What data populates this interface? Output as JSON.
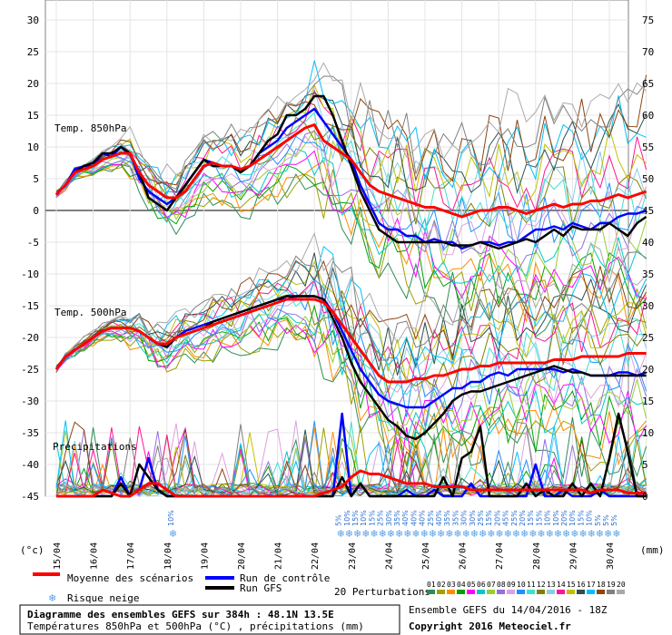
{
  "chart_data": {
    "type": "line",
    "y_left_ticks": [
      "30",
      "25",
      "20",
      "15",
      "10",
      "5",
      "0",
      "-5",
      "-10",
      "-15",
      "-20",
      "-25",
      "-30",
      "-35",
      "-40",
      "-45"
    ],
    "y_right_ticks": [
      "75",
      "70",
      "65",
      "60",
      "55",
      "50",
      "45",
      "40",
      "35",
      "30",
      "25",
      "20",
      "15",
      "10",
      "5",
      "0"
    ],
    "ylim_left": [
      -45,
      30
    ],
    "ylim_right": [
      0,
      75
    ],
    "unit_left": "(°c)",
    "unit_right": "(mm)",
    "x_dates": [
      "15/04",
      "16/04",
      "17/04",
      "18/04",
      "19/04",
      "20/04",
      "21/04",
      "22/04",
      "23/04",
      "24/04",
      "25/04",
      "26/04",
      "27/04",
      "28/04",
      "29/04",
      "30/04"
    ],
    "panel_labels": [
      "Temp. 850hPa",
      "Temp. 500hPa",
      "Précipitations"
    ],
    "x_days": [
      0,
      0.25,
      0.5,
      0.75,
      1,
      1.25,
      1.5,
      1.75,
      2,
      2.25,
      2.5,
      2.75,
      3,
      3.25,
      3.5,
      3.75,
      4,
      4.25,
      4.5,
      4.75,
      5,
      5.25,
      5.5,
      5.75,
      6,
      6.25,
      6.5,
      6.75,
      7,
      7.25,
      7.5,
      7.75,
      8,
      8.25,
      8.5,
      8.75,
      9,
      9.25,
      9.5,
      9.75,
      10,
      10.25,
      10.5,
      10.75,
      11,
      11.25,
      11.5,
      11.75,
      12,
      12.25,
      12.5,
      12.75,
      13,
      13.25,
      13.5,
      13.75,
      14,
      14.25,
      14.5,
      14.75,
      15,
      15.25,
      15.5,
      15.75,
      16
    ],
    "series": [
      {
        "name": "Moyenne des scénarios",
        "color": "#ff0000",
        "panel": "850",
        "values": [
          2.5,
          4,
          6,
          6.5,
          7,
          8,
          8.5,
          9,
          9,
          6,
          4,
          3,
          2,
          2,
          3,
          5,
          7,
          7.5,
          7,
          7,
          6.5,
          7,
          8,
          9,
          10,
          11,
          12,
          13,
          13.5,
          11,
          10,
          9,
          8,
          6,
          4,
          3,
          2.5,
          2,
          1.5,
          1,
          0.5,
          0.5,
          0,
          -0.5,
          -1,
          -0.5,
          0,
          0,
          0.5,
          0.5,
          0,
          -0.5,
          0,
          0.5,
          1,
          0.5,
          1,
          1,
          1.5,
          1.5,
          2,
          2.5,
          2,
          2.5,
          3
        ]
      },
      {
        "name": "Run de contrôle",
        "color": "#0000ff",
        "panel": "850",
        "values": [
          2.5,
          4,
          6.5,
          7,
          7,
          9,
          8.5,
          10,
          9,
          5,
          3,
          2,
          1,
          2,
          4,
          6,
          8,
          7.5,
          7,
          7,
          6.5,
          7,
          9,
          10,
          11,
          13,
          14,
          15,
          16,
          14,
          12,
          10,
          8,
          4,
          1,
          -2,
          -3,
          -3,
          -4,
          -4,
          -5,
          -4.5,
          -5,
          -5,
          -6,
          -5.5,
          -5,
          -5,
          -5.5,
          -5,
          -5,
          -4,
          -3,
          -3,
          -2.5,
          -3,
          -2,
          -2.5,
          -3,
          -2,
          -2,
          -1,
          -0.5,
          -0.5,
          0
        ]
      },
      {
        "name": "Run GFS",
        "color": "#000000",
        "panel": "850",
        "values": [
          2.5,
          4,
          6,
          7,
          7.5,
          9,
          9,
          10,
          9,
          6,
          2,
          1,
          0,
          2,
          4,
          6,
          8,
          7,
          7,
          7,
          6,
          7,
          9,
          11,
          12,
          15,
          15,
          16,
          18,
          18,
          15,
          11,
          7,
          3,
          0,
          -3,
          -4,
          -5,
          -5,
          -5,
          -5,
          -5,
          -5,
          -5.5,
          -5.5,
          -5.5,
          -5,
          -5.5,
          -6,
          -5.5,
          -5,
          -4.5,
          -5,
          -4,
          -3,
          -4,
          -2.5,
          -3,
          -3,
          -3,
          -2,
          -3,
          -4,
          -2,
          -1
        ]
      },
      {
        "name": "Moyenne des scénarios",
        "color": "#ff0000",
        "panel": "500",
        "values": [
          -25,
          -23,
          -22,
          -21,
          -20,
          -19,
          -18.5,
          -18.5,
          -18.5,
          -19,
          -20,
          -21,
          -21,
          -20,
          -19.5,
          -19,
          -18.5,
          -18,
          -17.5,
          -17,
          -16.5,
          -16,
          -15.5,
          -15,
          -14.5,
          -14,
          -14,
          -14,
          -14,
          -14.5,
          -16,
          -18,
          -20,
          -22,
          -24,
          -26,
          -27,
          -27,
          -27,
          -26.5,
          -26.5,
          -26,
          -26,
          -25.5,
          -25,
          -25,
          -24.5,
          -24.5,
          -24,
          -24,
          -24,
          -24,
          -24,
          -24,
          -23.5,
          -23.5,
          -23.5,
          -23,
          -23,
          -23,
          -23,
          -23,
          -22.5,
          -22.5,
          -22.5
        ]
      },
      {
        "name": "Run de contrôle",
        "color": "#0000ff",
        "panel": "500",
        "values": [
          -25,
          -23,
          -22,
          -21,
          -20,
          -19,
          -18.5,
          -18.5,
          -18.5,
          -19,
          -20,
          -21,
          -21.5,
          -20,
          -19,
          -18.5,
          -18,
          -17.5,
          -17,
          -16.5,
          -16,
          -15.5,
          -15,
          -14.5,
          -14,
          -14,
          -13.5,
          -13.5,
          -13.5,
          -14,
          -16,
          -19,
          -22,
          -25,
          -27,
          -29,
          -30,
          -30.5,
          -31,
          -31,
          -31,
          -30,
          -29,
          -28,
          -28,
          -27,
          -27,
          -26,
          -25.5,
          -26,
          -25,
          -25,
          -25,
          -25,
          -25,
          -25.5,
          -25,
          -25.5,
          -26,
          -26,
          -26,
          -25.5,
          -25.5,
          -26,
          -25.5
        ]
      },
      {
        "name": "Run GFS",
        "color": "#000000",
        "panel": "500",
        "values": [
          -25,
          -23,
          -22,
          -21,
          -20,
          -19,
          -18.5,
          -18.5,
          -18.5,
          -19,
          -20,
          -21,
          -21.5,
          -20,
          -19.5,
          -19,
          -18.5,
          -17.5,
          -17,
          -16.5,
          -16,
          -15.5,
          -15,
          -14.5,
          -14,
          -13.5,
          -13.5,
          -13.5,
          -13.5,
          -14,
          -17,
          -20,
          -24,
          -27,
          -29,
          -31,
          -33,
          -34,
          -35.5,
          -36,
          -35,
          -33.5,
          -32,
          -30,
          -29,
          -28.5,
          -28.5,
          -28,
          -27.5,
          -27,
          -26.5,
          -26,
          -25.5,
          -25,
          -24.5,
          -25,
          -25.5,
          -25.5,
          -26,
          -26,
          -26,
          -26,
          -26,
          -26,
          -26
        ]
      },
      {
        "name": "Moyenne des scénarios",
        "color": "#ff0000",
        "panel": "precip",
        "values": [
          0,
          0,
          0,
          0,
          0,
          1,
          0.5,
          0,
          0,
          1,
          2,
          2,
          1,
          0,
          0,
          0,
          0,
          0,
          0,
          0,
          0,
          0,
          0,
          0,
          0,
          0,
          0,
          0,
          0,
          0.5,
          1,
          1.5,
          3,
          4,
          3.5,
          3.5,
          3,
          2.5,
          2,
          2,
          2,
          1.5,
          1.5,
          1.5,
          1.5,
          1,
          1,
          1,
          1,
          1,
          1,
          1,
          1,
          1,
          1,
          1,
          1,
          1,
          0.5,
          1,
          1,
          1,
          0.5,
          0.5,
          0.5
        ]
      },
      {
        "name": "Run de contrôle",
        "color": "#0000ff",
        "panel": "precip",
        "values": [
          0,
          0,
          0,
          0,
          0,
          0,
          0,
          3,
          0,
          1,
          6,
          1,
          0,
          0,
          0,
          0,
          0,
          0,
          0,
          0,
          0,
          0,
          0,
          0,
          0,
          0,
          0,
          0,
          0,
          0,
          0,
          13,
          0,
          2,
          0,
          0,
          0,
          0,
          1,
          0,
          0,
          1,
          0,
          0,
          0,
          2,
          0,
          0,
          0,
          0,
          0,
          0,
          5,
          0,
          0,
          1,
          0,
          0,
          0,
          1,
          0,
          0,
          0,
          0,
          0
        ]
      },
      {
        "name": "Run GFS",
        "color": "#000000",
        "panel": "precip",
        "values": [
          0,
          0,
          0,
          0,
          0,
          0,
          0,
          2,
          0,
          5,
          3,
          1,
          0,
          0,
          0,
          0,
          0,
          0,
          0,
          0,
          0,
          0,
          0,
          0,
          0,
          0,
          0,
          0,
          0,
          0,
          0,
          3,
          0,
          2,
          0,
          0,
          0,
          0,
          0,
          0,
          0,
          0,
          3,
          0,
          6,
          7,
          11,
          0,
          0,
          0,
          0,
          2,
          0,
          1,
          0,
          0,
          2,
          0,
          2,
          0,
          6,
          13,
          7,
          0,
          0
        ]
      }
    ],
    "snow_risk": [
      {
        "day": 4.5,
        "label": "10%"
      },
      {
        "day": 11.25,
        "label": "5%"
      },
      {
        "day": 11.5,
        "label": "10%"
      },
      {
        "day": 11.75,
        "label": "15%"
      },
      {
        "day": 12,
        "label": "10%"
      },
      {
        "day": 12.25,
        "label": "15%"
      },
      {
        "day": 12.5,
        "label": "25%"
      },
      {
        "day": 12.75,
        "label": "30%"
      },
      {
        "day": 13,
        "label": "35%"
      },
      {
        "day": 13.25,
        "label": "40%"
      },
      {
        "day": 13.5,
        "label": "40%"
      },
      {
        "day": 13.75,
        "label": "40%"
      },
      {
        "day": 14,
        "label": "25%"
      },
      {
        "day": 14.25,
        "label": "40%"
      },
      {
        "day": 14.5,
        "label": "35%"
      },
      {
        "day": 14.75,
        "label": "35%"
      },
      {
        "day": 15,
        "label": "30%"
      },
      {
        "day": 15.25,
        "label": "30%"
      },
      {
        "day": 15.5,
        "label": "25%"
      },
      {
        "day": 15.75,
        "label": "15%"
      },
      {
        "day": 16,
        "label": "20%"
      },
      {
        "day": 16.25,
        "label": "45%"
      },
      {
        "day": 16.5,
        "label": "25%"
      },
      {
        "day": 16.75,
        "label": "20%"
      },
      {
        "day": 17,
        "label": "15%"
      },
      {
        "day": 17.25,
        "label": "15%"
      },
      {
        "day": 17.5,
        "label": "10%"
      },
      {
        "day": 17.75,
        "label": "10%"
      },
      {
        "day": 18,
        "label": "20%"
      },
      {
        "day": 18.25,
        "label": "10%"
      },
      {
        "day": 18.5,
        "label": "15%"
      },
      {
        "day": 18.75,
        "label": "10%"
      },
      {
        "day": 19,
        "label": "5%"
      },
      {
        "day": 19.25,
        "label": "5%"
      },
      {
        "day": 19.5,
        "label": "5%"
      }
    ]
  },
  "legend": {
    "mean_label": "Moyenne des scénarios",
    "control_label": "Run de contrôle",
    "gfs_label": "Run GFS",
    "snow_label": "Risque neige",
    "perturb_label": "20 Perturbations",
    "perturb_numbers": [
      "01",
      "02",
      "03",
      "04",
      "05",
      "06",
      "07",
      "08",
      "09",
      "10",
      "11",
      "12",
      "13",
      "14",
      "15",
      "16",
      "17",
      "18",
      "19",
      "20"
    ],
    "perturb_colors": [
      "#2e8b57",
      "#a0a000",
      "#ff8c00",
      "#00a000",
      "#ff00ff",
      "#00c8c8",
      "#9acd32",
      "#9370db",
      "#dda0dd",
      "#1e90ff",
      "#40e0d0",
      "#808000",
      "#87ceeb",
      "#ff1493",
      "#c0c000",
      "#2f4f4f",
      "#00bfff",
      "#8b4513",
      "#808080",
      "#a9a9a9"
    ]
  },
  "footer": {
    "title": "Diagramme des ensembles GEFS sur 384h : 48.1N 13.5E",
    "subtitle": "Températures 850hPa et 500hPa (°C) , précipitations (mm)",
    "run": "Ensemble GEFS du 14/04/2016 - 18Z",
    "copyright": "Copyright 2016 Meteociel.fr"
  }
}
